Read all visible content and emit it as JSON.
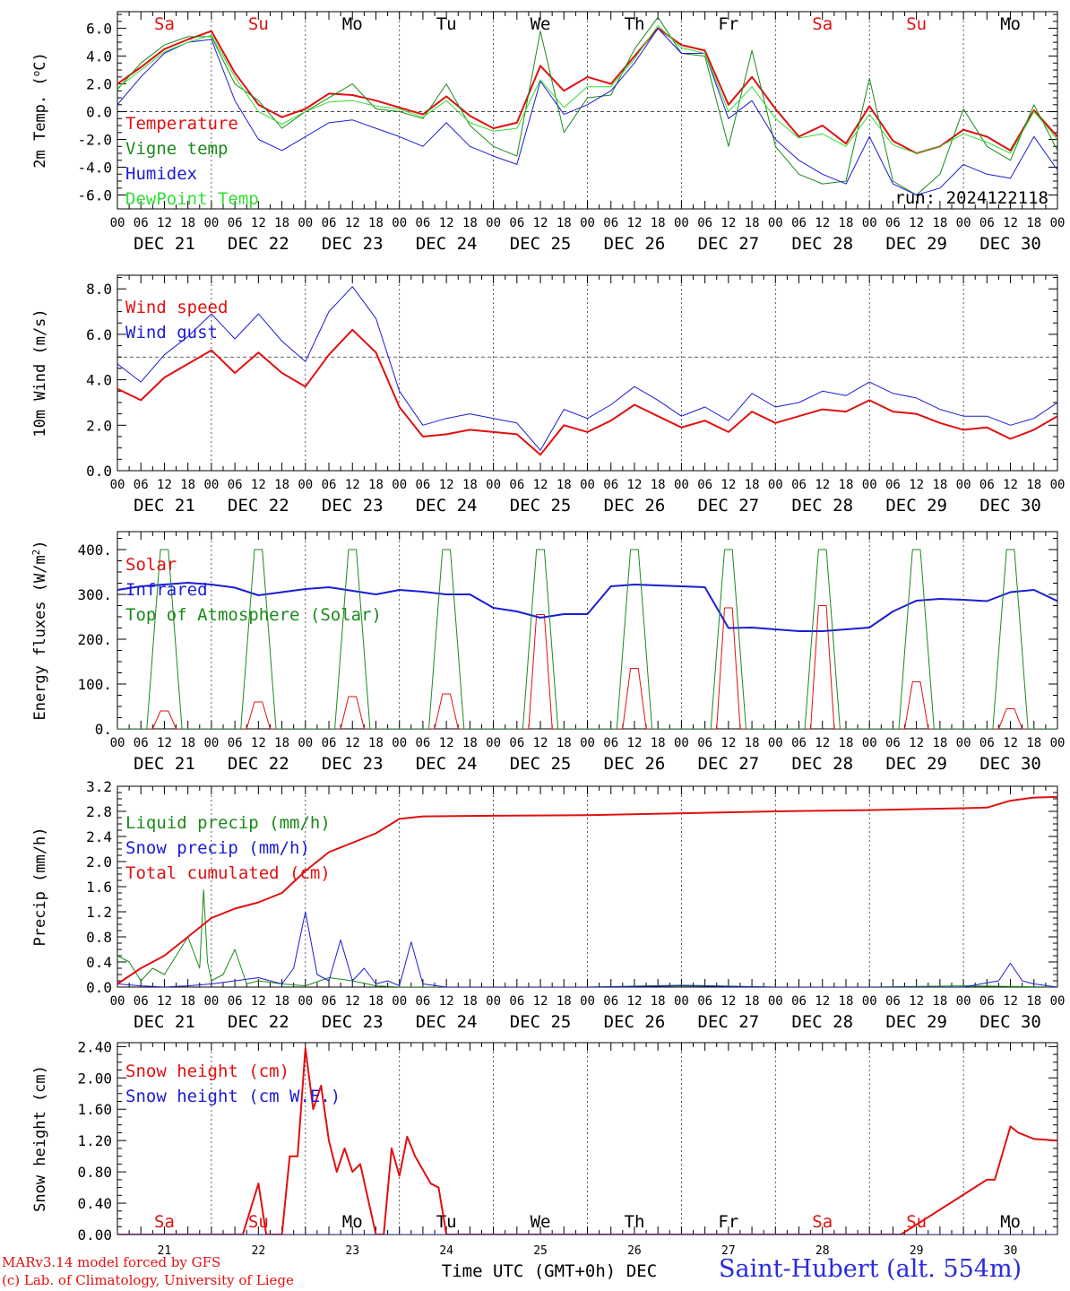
{
  "colors": {
    "red": "#e01010",
    "green": "#1a8a1a",
    "lightgreen": "#33dd33",
    "blue": "#1c1cd6",
    "axis": "#000000"
  },
  "x_axis": {
    "day_names": [
      "Sa",
      "Su",
      "Mo",
      "Tu",
      "We",
      "Th",
      "Fr",
      "Sa",
      "Su",
      "Mo"
    ],
    "day_name_colors": [
      "#e01010",
      "#e01010",
      "#000000",
      "#000000",
      "#000000",
      "#000000",
      "#000000",
      "#e01010",
      "#e01010",
      "#000000"
    ],
    "hour_labels": [
      "00",
      "06",
      "12",
      "18"
    ],
    "final_hour_label": "00",
    "date_labels": [
      "DEC 21",
      "DEC 22",
      "DEC 23",
      "DEC 24",
      "DEC 25",
      "DEC 26",
      "DEC 27",
      "DEC 28",
      "DEC 29",
      "DEC 30"
    ],
    "bottom_day_numbers": [
      "21",
      "22",
      "23",
      "24",
      "25",
      "26",
      "27",
      "28",
      "29",
      "30"
    ],
    "bottom_title": "Time UTC (GMT+0h)",
    "bottom_month": "DEC"
  },
  "footer": {
    "credit_line1": "MARv3.14 model forced by GFS",
    "credit_line2": "(c) Lab. of Climatology, University of Liege",
    "station": "Saint-Hubert (alt. 554m)"
  },
  "chart_data": [
    {
      "type": "line",
      "ylabel": "2m Temp. (oC)",
      "ylim": [
        -7.0,
        7.2
      ],
      "yticks": [
        -6.0,
        -4.0,
        -2.0,
        0.0,
        2.0,
        4.0,
        6.0
      ],
      "ytick_labels": [
        "-6.0",
        "-4.0",
        "-2.0",
        "0.0",
        "2.0",
        "4.0",
        "6.0"
      ],
      "reference_line": 0.0,
      "annotation": "run: 2024122118",
      "series": [
        {
          "name": "Temperature",
          "color": "#e01010",
          "width": 2,
          "x": [
            0,
            6,
            12,
            18,
            24,
            30,
            36,
            42,
            48,
            54,
            60,
            66,
            72,
            78,
            84,
            90,
            96,
            102,
            108,
            114,
            120,
            126,
            132,
            138,
            144,
            150,
            156,
            162,
            168,
            174,
            180,
            186,
            192,
            198,
            204,
            210,
            216,
            222,
            228,
            234,
            240
          ],
          "y": [
            2.0,
            3.2,
            4.5,
            5.2,
            5.8,
            2.8,
            0.5,
            -0.4,
            0.2,
            1.3,
            1.2,
            0.8,
            0.3,
            -0.2,
            1.1,
            -0.3,
            -1.2,
            -0.8,
            3.3,
            1.5,
            2.5,
            2.0,
            4.0,
            6.0,
            4.8,
            4.4,
            0.5,
            2.5,
            0.2,
            -1.8,
            -1.0,
            -2.3,
            0.4,
            -2.1,
            -3.0,
            -2.5,
            -1.3,
            -1.8,
            -2.8,
            0.1,
            -1.8
          ]
        },
        {
          "name": "Vigne temp",
          "color": "#1a8a1a",
          "width": 1,
          "x": [
            0,
            6,
            12,
            18,
            24,
            30,
            36,
            42,
            48,
            54,
            60,
            66,
            72,
            78,
            84,
            90,
            96,
            102,
            108,
            114,
            120,
            126,
            132,
            138,
            144,
            150,
            156,
            162,
            168,
            174,
            180,
            186,
            192,
            198,
            204,
            210,
            216,
            222,
            228,
            234,
            240
          ],
          "y": [
            1.6,
            3.5,
            4.8,
            5.4,
            5.4,
            2.0,
            0.8,
            -1.2,
            0.0,
            1.0,
            2.0,
            0.2,
            0.0,
            -0.5,
            2.0,
            -1.0,
            -2.5,
            -3.2,
            5.8,
            -1.5,
            1.0,
            1.2,
            4.5,
            6.8,
            4.2,
            4.0,
            -2.5,
            4.4,
            -2.5,
            -4.5,
            -5.2,
            -5.0,
            2.4,
            -5.0,
            -6.0,
            -4.5,
            0.2,
            -2.5,
            -3.5,
            0.5,
            -2.8
          ]
        },
        {
          "name": "Humidex",
          "color": "#1c1cd6",
          "width": 1,
          "x": [
            0,
            6,
            12,
            18,
            24,
            30,
            36,
            42,
            48,
            54,
            60,
            66,
            72,
            78,
            84,
            90,
            96,
            102,
            108,
            114,
            120,
            126,
            132,
            138,
            144,
            150,
            156,
            162,
            168,
            174,
            180,
            186,
            192,
            198,
            204,
            210,
            216,
            222,
            228,
            234,
            240
          ],
          "y": [
            0.5,
            2.5,
            4.2,
            5.0,
            5.2,
            0.8,
            -2.0,
            -2.8,
            -1.8,
            -0.8,
            -0.6,
            -1.2,
            -1.8,
            -2.5,
            -0.8,
            -2.5,
            -3.2,
            -3.8,
            2.2,
            -0.2,
            0.5,
            1.5,
            3.5,
            6.0,
            4.2,
            4.2,
            -0.5,
            0.8,
            -2.0,
            -3.5,
            -4.5,
            -5.2,
            -1.8,
            -5.2,
            -6.0,
            -5.5,
            -3.8,
            -4.5,
            -4.8,
            -1.8,
            -4.2
          ]
        },
        {
          "name": "DewPoint Temp",
          "color": "#33dd33",
          "width": 1,
          "x": [
            0,
            6,
            12,
            18,
            24,
            30,
            36,
            42,
            48,
            54,
            60,
            66,
            72,
            78,
            84,
            90,
            96,
            102,
            108,
            114,
            120,
            126,
            132,
            138,
            144,
            150,
            156,
            162,
            168,
            174,
            180,
            186,
            192,
            198,
            204,
            210,
            216,
            222,
            228,
            234,
            240
          ],
          "y": [
            1.7,
            3.0,
            4.3,
            5.0,
            5.5,
            2.5,
            0.0,
            -0.9,
            0.0,
            0.7,
            0.8,
            0.4,
            0.2,
            -0.4,
            0.8,
            -0.8,
            -1.4,
            -1.2,
            2.3,
            0.3,
            1.8,
            1.8,
            3.8,
            6.2,
            4.6,
            4.2,
            0.0,
            1.8,
            -0.5,
            -1.9,
            -1.6,
            -2.5,
            -0.2,
            -2.4,
            -3.0,
            -2.5,
            -1.6,
            -2.2,
            -3.0,
            0.0,
            -2.0
          ]
        }
      ]
    },
    {
      "type": "line",
      "ylabel": "10m Wind (m/s)",
      "ylim": [
        0.0,
        8.6
      ],
      "yticks": [
        0.0,
        2.0,
        4.0,
        6.0,
        8.0
      ],
      "ytick_labels": [
        "0.0",
        "2.0",
        "4.0",
        "6.0",
        "8.0"
      ],
      "reference_line": 5.0,
      "series": [
        {
          "name": "Wind speed",
          "color": "#e01010",
          "width": 2,
          "x": [
            0,
            6,
            12,
            18,
            24,
            30,
            36,
            42,
            48,
            54,
            60,
            66,
            72,
            78,
            84,
            90,
            96,
            102,
            108,
            114,
            120,
            126,
            132,
            138,
            144,
            150,
            156,
            162,
            168,
            174,
            180,
            186,
            192,
            198,
            204,
            210,
            216,
            222,
            228,
            234,
            240
          ],
          "y": [
            3.6,
            3.1,
            4.1,
            4.7,
            5.3,
            4.3,
            5.2,
            4.3,
            3.7,
            5.1,
            6.2,
            5.2,
            2.8,
            1.5,
            1.6,
            1.8,
            1.7,
            1.6,
            0.7,
            2.0,
            1.7,
            2.2,
            2.9,
            2.4,
            1.9,
            2.2,
            1.7,
            2.6,
            2.1,
            2.4,
            2.7,
            2.6,
            3.1,
            2.6,
            2.5,
            2.1,
            1.8,
            1.9,
            1.4,
            1.8,
            2.4
          ]
        },
        {
          "name": "Wind gust",
          "color": "#1c1cd6",
          "width": 1,
          "x": [
            0,
            6,
            12,
            18,
            24,
            30,
            36,
            42,
            48,
            54,
            60,
            66,
            72,
            78,
            84,
            90,
            96,
            102,
            108,
            114,
            120,
            126,
            132,
            138,
            144,
            150,
            156,
            162,
            168,
            174,
            180,
            186,
            192,
            198,
            204,
            210,
            216,
            222,
            228,
            234,
            240
          ],
          "y": [
            4.7,
            3.9,
            5.1,
            5.9,
            6.9,
            5.8,
            6.9,
            5.7,
            4.8,
            7.0,
            8.1,
            6.7,
            3.5,
            2.0,
            2.3,
            2.5,
            2.3,
            2.1,
            0.9,
            2.7,
            2.3,
            2.9,
            3.7,
            3.1,
            2.4,
            2.8,
            2.2,
            3.4,
            2.8,
            3.0,
            3.5,
            3.3,
            3.9,
            3.4,
            3.2,
            2.7,
            2.4,
            2.4,
            2.0,
            2.3,
            3.0
          ]
        }
      ]
    },
    {
      "type": "line",
      "ylabel": "Energy fluxes (W/m2)",
      "ylim": [
        0,
        440
      ],
      "yticks": [
        0,
        100,
        200,
        300,
        400
      ],
      "ytick_labels": [
        "0.",
        "100.",
        "200.",
        "300.",
        "400."
      ],
      "series": [
        {
          "name": "Solar",
          "color": "#e01010",
          "width": 1,
          "daily_peaks": [
            40,
            60,
            72,
            78,
            255,
            135,
            270,
            275,
            105,
            45
          ]
        },
        {
          "name": "Infrared",
          "color": "#1c1cd6",
          "width": 2,
          "x": [
            0,
            6,
            12,
            18,
            24,
            30,
            36,
            42,
            48,
            54,
            60,
            66,
            72,
            78,
            84,
            90,
            96,
            102,
            108,
            114,
            120,
            126,
            132,
            138,
            144,
            150,
            156,
            162,
            168,
            174,
            180,
            186,
            192,
            198,
            204,
            210,
            216,
            222,
            228,
            234,
            240
          ],
          "y": [
            310,
            318,
            322,
            326,
            322,
            315,
            298,
            305,
            312,
            316,
            308,
            300,
            310,
            306,
            300,
            300,
            270,
            262,
            248,
            256,
            256,
            318,
            322,
            320,
            318,
            316,
            225,
            226,
            222,
            218,
            218,
            222,
            226,
            262,
            286,
            290,
            288,
            285,
            305,
            310,
            285
          ]
        },
        {
          "name": "Top of Atmosphere (Solar)",
          "color": "#1a8a1a",
          "width": 1,
          "daily_peak": 400
        }
      ]
    },
    {
      "type": "line",
      "ylabel": "Precip (mm/h)",
      "ylim": [
        0.0,
        3.2
      ],
      "yticks": [
        0.0,
        0.4,
        0.8,
        1.2,
        1.6,
        2.0,
        2.4,
        2.8,
        3.2
      ],
      "ytick_labels": [
        "0.0",
        "0.4",
        "0.8",
        "1.2",
        "1.6",
        "2.0",
        "2.4",
        "2.8",
        "3.2"
      ],
      "series": [
        {
          "name": "Liquid precip (mm/h)",
          "color": "#1a8a1a",
          "width": 1,
          "x": [
            0,
            3,
            6,
            9,
            12,
            15,
            18,
            21,
            22,
            23,
            24,
            27,
            30,
            33,
            36,
            42,
            48,
            54,
            60,
            66,
            72,
            78,
            84,
            96,
            120,
            144,
            168,
            192,
            216,
            240
          ],
          "y": [
            0.5,
            0.4,
            0.1,
            0.3,
            0.2,
            0.5,
            0.8,
            0.3,
            1.55,
            0.4,
            0.1,
            0.2,
            0.6,
            0.05,
            0.1,
            0.05,
            0.02,
            0.15,
            0.1,
            0.02,
            0.0,
            0.0,
            0.0,
            0.0,
            0.0,
            0.03,
            0.0,
            0.0,
            0.02,
            0.0
          ]
        },
        {
          "name": "Snow precip (mm/h)",
          "color": "#1c1cd6",
          "width": 1,
          "x": [
            0,
            6,
            12,
            18,
            24,
            30,
            36,
            42,
            45,
            48,
            51,
            54,
            57,
            60,
            63,
            66,
            69,
            72,
            75,
            78,
            84,
            96,
            120,
            144,
            168,
            192,
            216,
            225,
            228,
            231,
            234,
            240
          ],
          "y": [
            0.05,
            0.02,
            0.0,
            0.02,
            0.05,
            0.1,
            0.15,
            0.05,
            0.3,
            1.2,
            0.2,
            0.1,
            0.75,
            0.1,
            0.3,
            0.05,
            0.1,
            0.02,
            0.72,
            0.05,
            0.0,
            0.0,
            0.0,
            0.02,
            0.0,
            0.0,
            0.0,
            0.1,
            0.38,
            0.1,
            0.05,
            0.0
          ]
        },
        {
          "name": "Total cumulated (cm)",
          "color": "#e01010",
          "width": 2,
          "x": [
            0,
            6,
            12,
            18,
            24,
            30,
            36,
            42,
            48,
            54,
            60,
            66,
            72,
            78,
            96,
            120,
            144,
            168,
            192,
            216,
            222,
            228,
            234,
            240
          ],
          "y": [
            0.05,
            0.3,
            0.5,
            0.8,
            1.1,
            1.25,
            1.35,
            1.5,
            1.85,
            2.15,
            2.3,
            2.45,
            2.68,
            2.72,
            2.73,
            2.74,
            2.77,
            2.8,
            2.82,
            2.85,
            2.86,
            2.97,
            3.02,
            3.03
          ]
        }
      ]
    },
    {
      "type": "line",
      "ylabel": "Snow height (cm)",
      "ylim": [
        0.0,
        2.45
      ],
      "yticks": [
        0.0,
        0.4,
        0.8,
        1.2,
        1.6,
        2.0,
        2.4
      ],
      "ytick_labels": [
        "0.00",
        "0.40",
        "0.80",
        "1.20",
        "1.60",
        "2.00",
        "2.40"
      ],
      "series": [
        {
          "name": "Snow height (cm)",
          "color": "#e01010",
          "width": 2,
          "x": [
            0,
            32,
            36,
            38,
            42,
            44,
            46,
            48,
            50,
            52,
            54,
            56,
            58,
            60,
            62,
            66,
            68,
            70,
            72,
            74,
            76,
            80,
            82,
            84,
            90,
            200,
            222,
            224,
            228,
            230,
            234,
            240
          ],
          "y": [
            0,
            0,
            0.65,
            0,
            0,
            1.0,
            1.0,
            2.38,
            1.6,
            1.9,
            1.2,
            0.8,
            1.1,
            0.8,
            0.9,
            0,
            0,
            1.1,
            0.75,
            1.25,
            1.0,
            0.65,
            0.6,
            0,
            0,
            0,
            0.7,
            0.7,
            1.38,
            1.3,
            1.22,
            1.2
          ]
        },
        {
          "name": "Snow height (cm W.E.)",
          "color": "#1c1cd6",
          "width": 1,
          "x": [
            0,
            240
          ],
          "y": [
            0,
            0
          ]
        }
      ]
    }
  ]
}
